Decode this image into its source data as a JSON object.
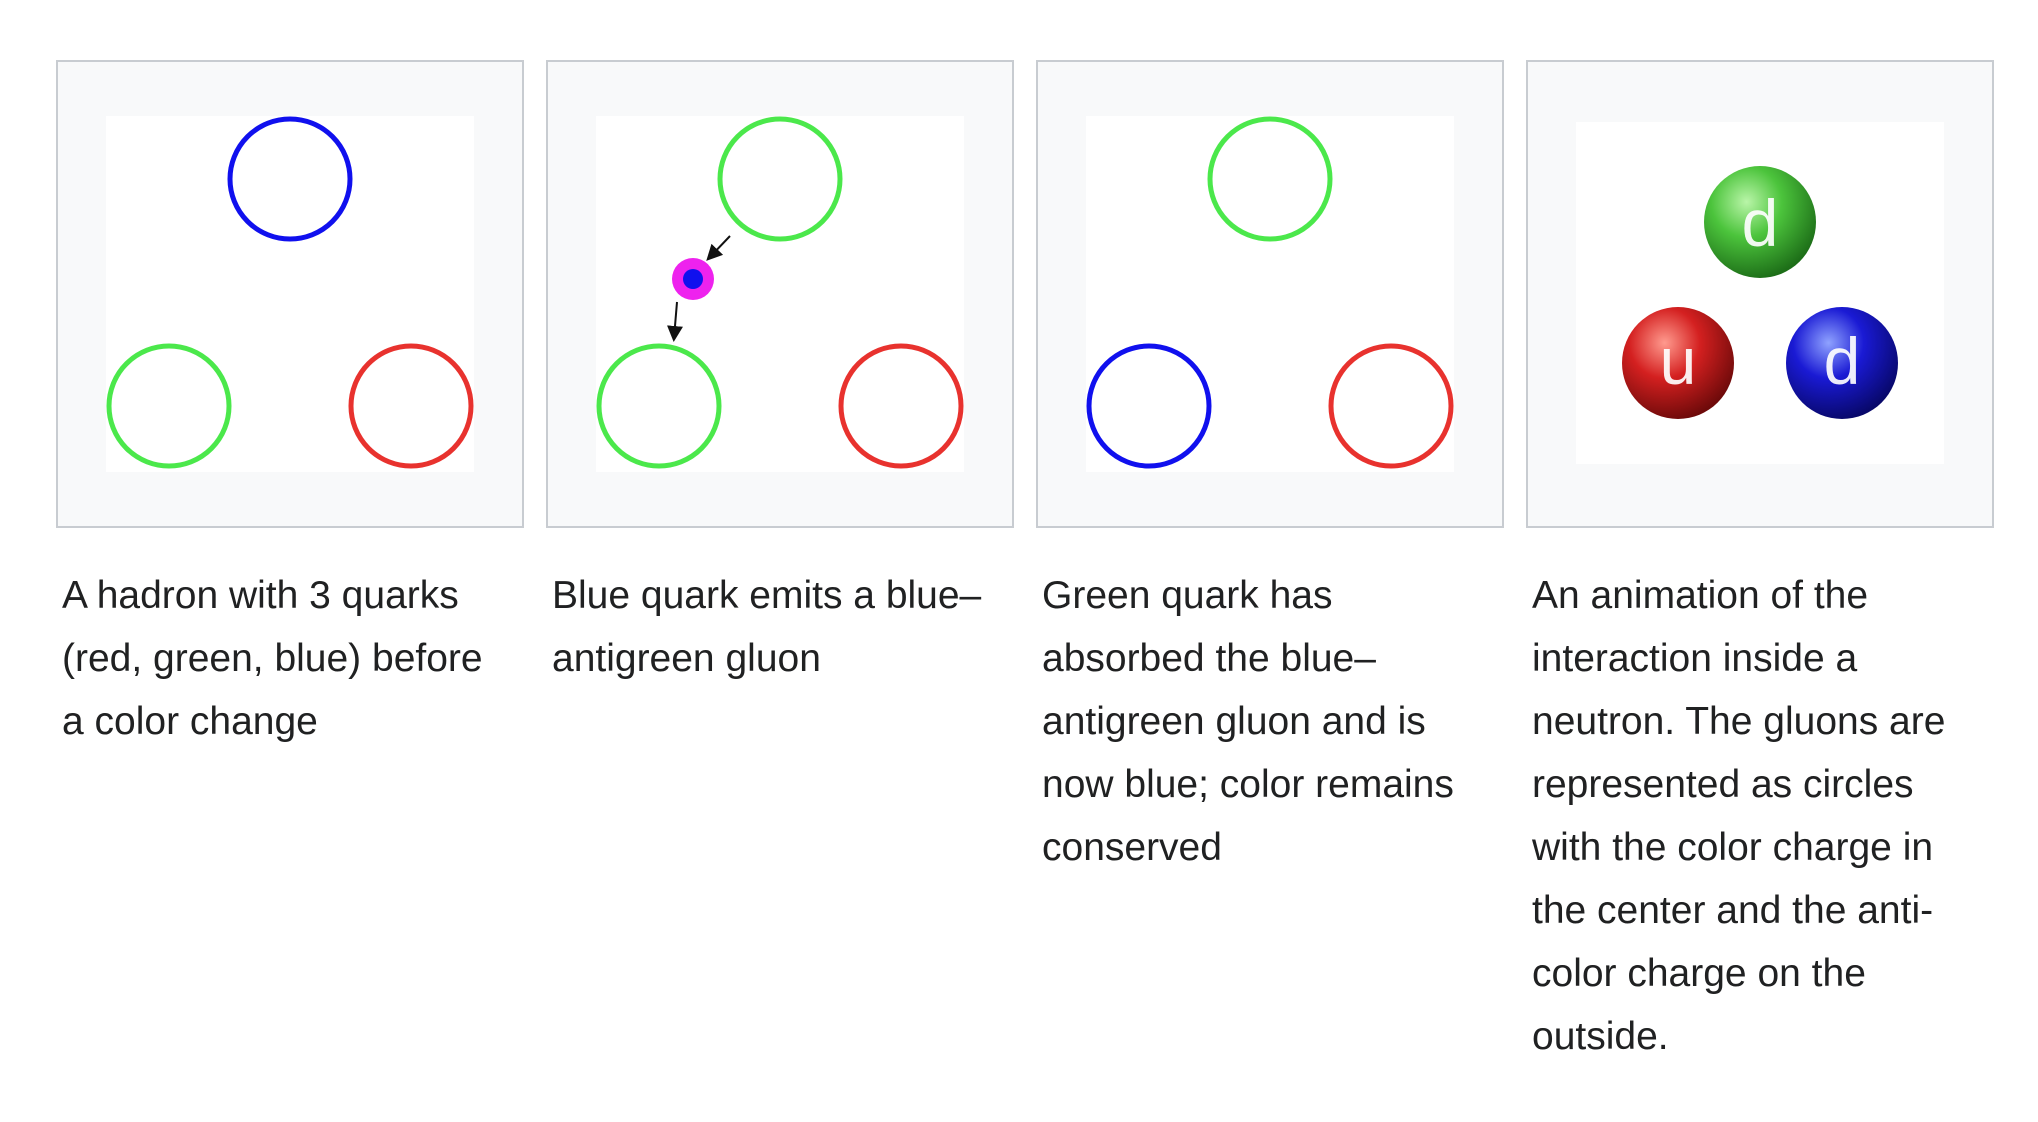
{
  "gallery": {
    "items": [
      {
        "caption": "A hadron with 3 quarks (red, green, blue) before a color change",
        "quarks": [
          {
            "color": "blue",
            "stroke": "#1010ee"
          },
          {
            "color": "green",
            "stroke": "#4be84b"
          },
          {
            "color": "red",
            "stroke": "#e8322e"
          }
        ]
      },
      {
        "caption": "Blue quark emits a blue–antigreen gluon",
        "quarks": [
          {
            "color": "green",
            "stroke": "#4be84b"
          },
          {
            "color": "green",
            "stroke": "#4be84b"
          },
          {
            "color": "red",
            "stroke": "#e8322e"
          }
        ],
        "gluon": {
          "core": "#1010ee",
          "halo": "#ee22ee"
        }
      },
      {
        "caption": "Green quark has absorbed the blue–antigreen gluon and is now blue; color remains conserved",
        "quarks": [
          {
            "color": "green",
            "stroke": "#4be84b"
          },
          {
            "color": "blue",
            "stroke": "#1010ee"
          },
          {
            "color": "red",
            "stroke": "#e8322e"
          }
        ]
      },
      {
        "caption": "An animation of the interaction inside a neutron. The gluons are represented as circles with the color charge in the center and the anti-color charge on the outside.",
        "balls": [
          {
            "letter": "d",
            "color": "green",
            "fill": "#3fb53f"
          },
          {
            "letter": "u",
            "color": "red",
            "fill": "#c81818"
          },
          {
            "letter": "d",
            "color": "blue",
            "fill": "#1212c8"
          }
        ]
      }
    ]
  }
}
